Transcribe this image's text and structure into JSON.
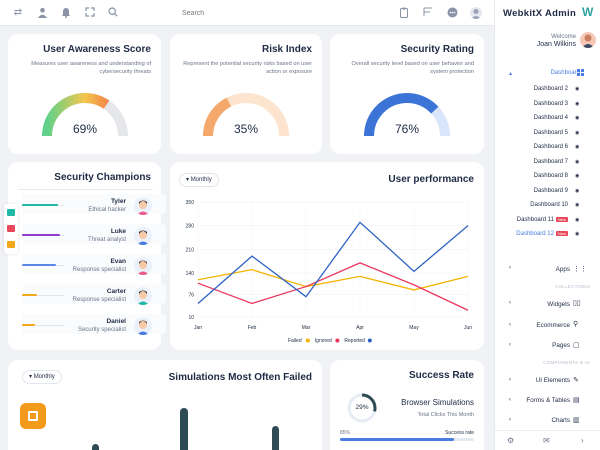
{
  "topbar": {
    "search_placeholder": "Search",
    "icons": [
      "shuffle-icon",
      "user-icon",
      "bell-icon",
      "expand-icon",
      "search-icon",
      "clipboard-icon",
      "layout-icon",
      "chat-icon",
      "avatar"
    ]
  },
  "sidebar": {
    "brand": "WebkitX Admin",
    "welcome": "Welcome",
    "username": "Joan Wilkins",
    "dashboard_label": "Dashboard",
    "dashboards": [
      {
        "label": "Dashboard 2",
        "badge": ""
      },
      {
        "label": "Dashboard 3",
        "badge": ""
      },
      {
        "label": "Dashboard 4",
        "badge": ""
      },
      {
        "label": "Dashboard 5",
        "badge": ""
      },
      {
        "label": "Dashboard 6",
        "badge": ""
      },
      {
        "label": "Dashboard 7",
        "badge": ""
      },
      {
        "label": "Dashboard 8",
        "badge": ""
      },
      {
        "label": "Dashboard 9",
        "badge": ""
      },
      {
        "label": "Dashboard 10",
        "badge": ""
      },
      {
        "label": "Dashboard 11",
        "badge": "New"
      },
      {
        "label": "Dashboard 12",
        "badge": "New"
      }
    ],
    "apps_label": "Apps",
    "collections_head": "COLLECTIONS",
    "widgets_label": "Widgets",
    "ecommerce_label": "Ecommerce",
    "pages_label": "Pages",
    "components_head": "COMPONENTS & UI",
    "ui_elements_label": "UI Elements",
    "forms_label": "Forms & Tables",
    "charts_label": "Charts",
    "accent": "#4a7de0"
  },
  "cards": {
    "awareness": {
      "title": "User Awareness Score",
      "desc": "Measures user awareness and understanding of cybersecurity threats",
      "value": "69%",
      "fraction": 0.69
    },
    "risk": {
      "title": "Risk Index",
      "desc": "Represent the potential security risks based on user action or exposure",
      "value": "35%",
      "fraction": 0.35
    },
    "rating": {
      "title": "Security Rating",
      "desc": "Overall security level based on user behavior and system protection",
      "value": "76%",
      "fraction": 0.76
    }
  },
  "champions": {
    "title": "Security Champions",
    "people": [
      {
        "name": "Tyler",
        "role": "Ethical hacker",
        "color": "#22b8a8",
        "fraction": 0.85
      },
      {
        "name": "Luke",
        "role": "Threat analyst",
        "color": "#8a3fcf",
        "fraction": 0.9
      },
      {
        "name": "Evan",
        "role": "Response specialist",
        "color": "#5b87e8",
        "fraction": 0.8
      },
      {
        "name": "Carter",
        "role": "Response specialist",
        "color": "#f4a91d",
        "fraction": 0.35
      },
      {
        "name": "Daniel",
        "role": "Security specialist",
        "color": "#f4a91d",
        "fraction": 0.3
      }
    ]
  },
  "performance": {
    "dropdown": "Monthly",
    "title": "User performance"
  },
  "chart_data": {
    "type": "line",
    "title": "User performance",
    "categories": [
      "Jan",
      "Feb",
      "Mar",
      "Apr",
      "May",
      "Jun"
    ],
    "ylim": [
      10,
      350
    ],
    "yticks": [
      10,
      76,
      140,
      210,
      280,
      350
    ],
    "series": [
      {
        "name": "Failed",
        "color": "#f4b400",
        "values": [
          120,
          150,
          100,
          130,
          90,
          130
        ]
      },
      {
        "name": "Ignored",
        "color": "#e8365d",
        "values": [
          110,
          50,
          100,
          170,
          105,
          30
        ]
      },
      {
        "name": "Reported",
        "color": "#2f63c4",
        "values": [
          50,
          190,
          70,
          290,
          145,
          280
        ]
      }
    ],
    "grid": true,
    "legend": "bottom"
  },
  "simulations": {
    "dropdown": "Monthly",
    "title": "Simulations Most Often Failed"
  },
  "success": {
    "title": "Success Rate",
    "ring_value": "29%",
    "fraction": 0.29,
    "heading": "Browser Simulations",
    "subtitle": "Total Clicks This Month",
    "bar_pct_label": "85%",
    "bar_caption": "Success rate",
    "bar_fraction": 0.85
  }
}
